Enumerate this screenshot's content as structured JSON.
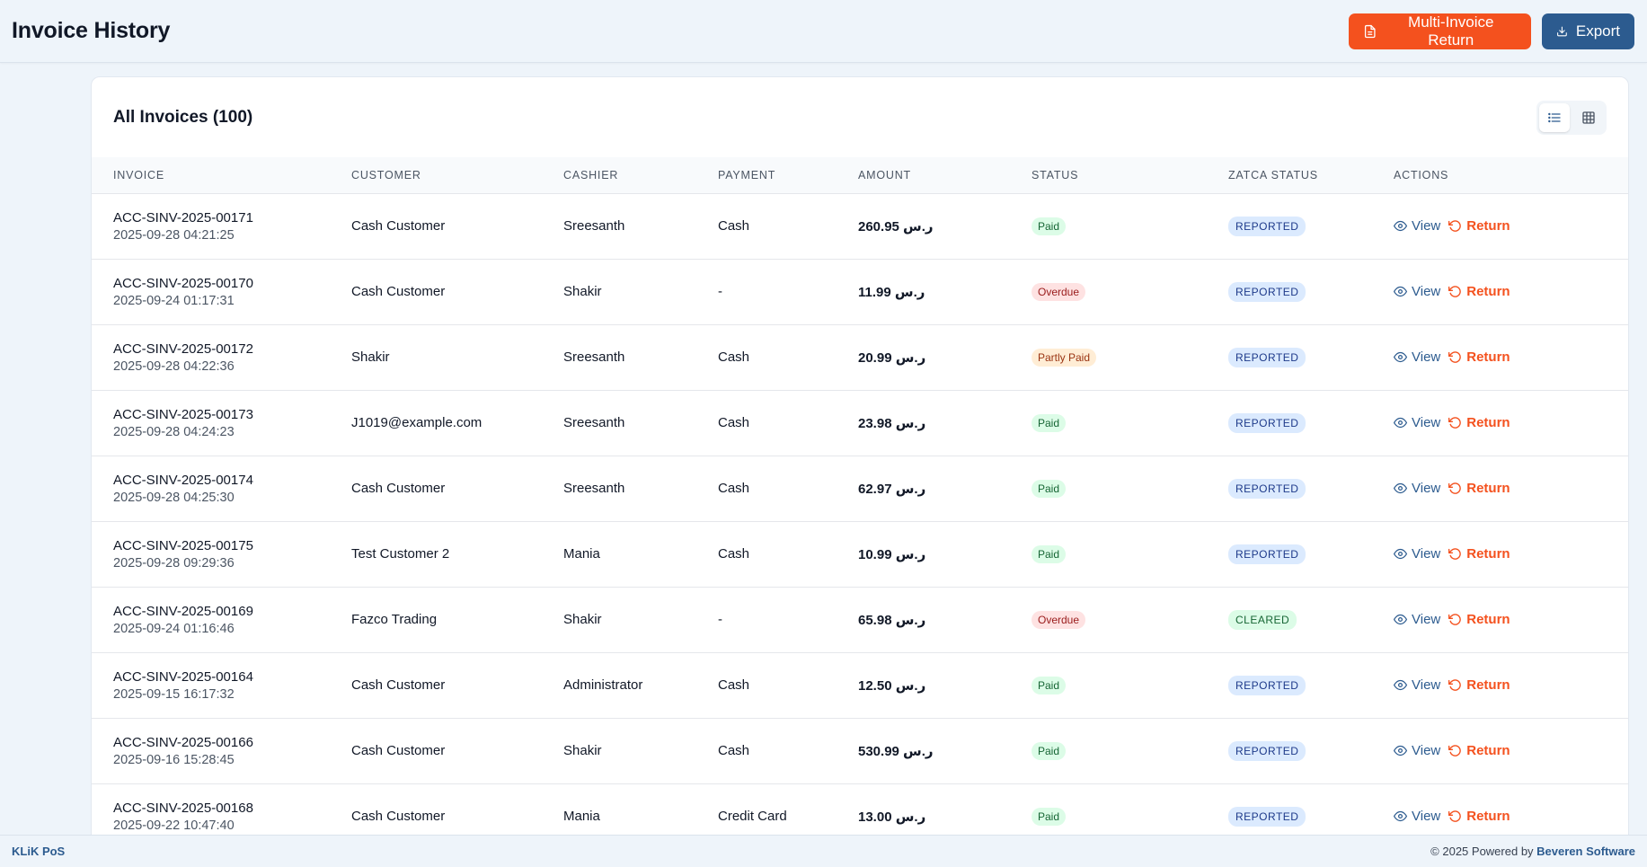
{
  "header": {
    "title": "Invoice History",
    "multi_return_label": "Multi-Invoice Return",
    "export_label": "Export"
  },
  "card": {
    "title": "All Invoices (100)",
    "view_modes": [
      "list-icon",
      "grid-icon"
    ],
    "active_view": "list"
  },
  "table": {
    "columns": [
      "INVOICE",
      "CUSTOMER",
      "CASHIER",
      "PAYMENT",
      "AMOUNT",
      "STATUS",
      "ZATCA STATUS",
      "ACTIONS"
    ],
    "view_label": "View",
    "return_label": "Return",
    "rows": [
      {
        "invoice": "ACC-SINV-2025-00171",
        "date": "2025-09-28 04:21:25",
        "customer": "Cash Customer",
        "cashier": "Sreesanth",
        "payment": "Cash",
        "amount": "260.95 ر.س",
        "status": "Paid",
        "zatca": "REPORTED"
      },
      {
        "invoice": "ACC-SINV-2025-00170",
        "date": "2025-09-24 01:17:31",
        "customer": "Cash Customer",
        "cashier": "Shakir",
        "payment": "-",
        "amount": "11.99 ر.س",
        "status": "Overdue",
        "zatca": "REPORTED"
      },
      {
        "invoice": "ACC-SINV-2025-00172",
        "date": "2025-09-28 04:22:36",
        "customer": "Shakir",
        "cashier": "Sreesanth",
        "payment": "Cash",
        "amount": "20.99 ر.س",
        "status": "Partly Paid",
        "zatca": "REPORTED"
      },
      {
        "invoice": "ACC-SINV-2025-00173",
        "date": "2025-09-28 04:24:23",
        "customer": "J1019@example.com",
        "cashier": "Sreesanth",
        "payment": "Cash",
        "amount": "23.98 ر.س",
        "status": "Paid",
        "zatca": "REPORTED"
      },
      {
        "invoice": "ACC-SINV-2025-00174",
        "date": "2025-09-28 04:25:30",
        "customer": "Cash Customer",
        "cashier": "Sreesanth",
        "payment": "Cash",
        "amount": "62.97 ر.س",
        "status": "Paid",
        "zatca": "REPORTED"
      },
      {
        "invoice": "ACC-SINV-2025-00175",
        "date": "2025-09-28 09:29:36",
        "customer": "Test Customer 2",
        "cashier": "Mania",
        "payment": "Cash",
        "amount": "10.99 ر.س",
        "status": "Paid",
        "zatca": "REPORTED"
      },
      {
        "invoice": "ACC-SINV-2025-00169",
        "date": "2025-09-24 01:16:46",
        "customer": "Fazco Trading",
        "cashier": "Shakir",
        "payment": "-",
        "amount": "65.98 ر.س",
        "status": "Overdue",
        "zatca": "CLEARED"
      },
      {
        "invoice": "ACC-SINV-2025-00164",
        "date": "2025-09-15 16:17:32",
        "customer": "Cash Customer",
        "cashier": "Administrator",
        "payment": "Cash",
        "amount": "12.50 ر.س",
        "status": "Paid",
        "zatca": "REPORTED"
      },
      {
        "invoice": "ACC-SINV-2025-00166",
        "date": "2025-09-16 15:28:45",
        "customer": "Cash Customer",
        "cashier": "Shakir",
        "payment": "Cash",
        "amount": "530.99 ر.س",
        "status": "Paid",
        "zatca": "REPORTED"
      },
      {
        "invoice": "ACC-SINV-2025-00168",
        "date": "2025-09-22 10:47:40",
        "customer": "Cash Customer",
        "cashier": "Mania",
        "payment": "Credit Card",
        "amount": "13.00 ر.س",
        "status": "Paid",
        "zatca": "REPORTED"
      }
    ]
  },
  "footer": {
    "brand": "KLiK PoS",
    "copyright_prefix": "© 2025 Powered by",
    "company": "Beveren Software"
  },
  "colors": {
    "accent_orange": "#f4511e",
    "accent_navy": "#2c5b8f",
    "background": "#eef4fa"
  }
}
